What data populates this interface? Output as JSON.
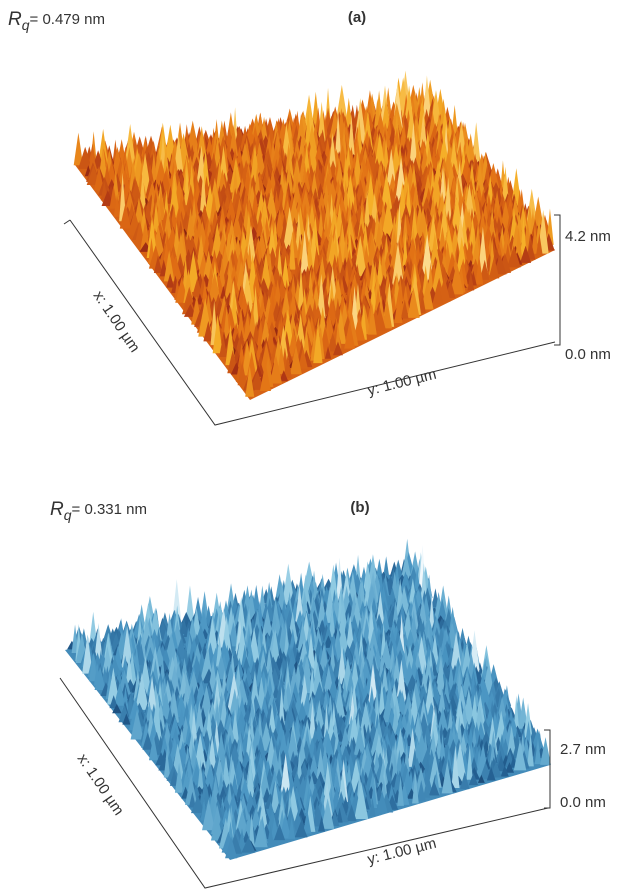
{
  "panels": [
    {
      "label": "(a)",
      "rq": {
        "symbol": "R",
        "subscript": "q",
        "value": "= 0.479 nm"
      },
      "x_axis": "x: 1.00 µm",
      "y_axis": "y: 1.00 µm",
      "z_max": "4.2 nm",
      "z_min": "0.0 nm"
    },
    {
      "label": "(b)",
      "rq": {
        "symbol": "R",
        "subscript": "q",
        "value": "= 0.331 nm"
      },
      "x_axis": "x: 1.00 µm",
      "y_axis": "y: 1.00 µm",
      "z_max": "2.7 nm",
      "z_min": "0.0 nm"
    }
  ]
}
